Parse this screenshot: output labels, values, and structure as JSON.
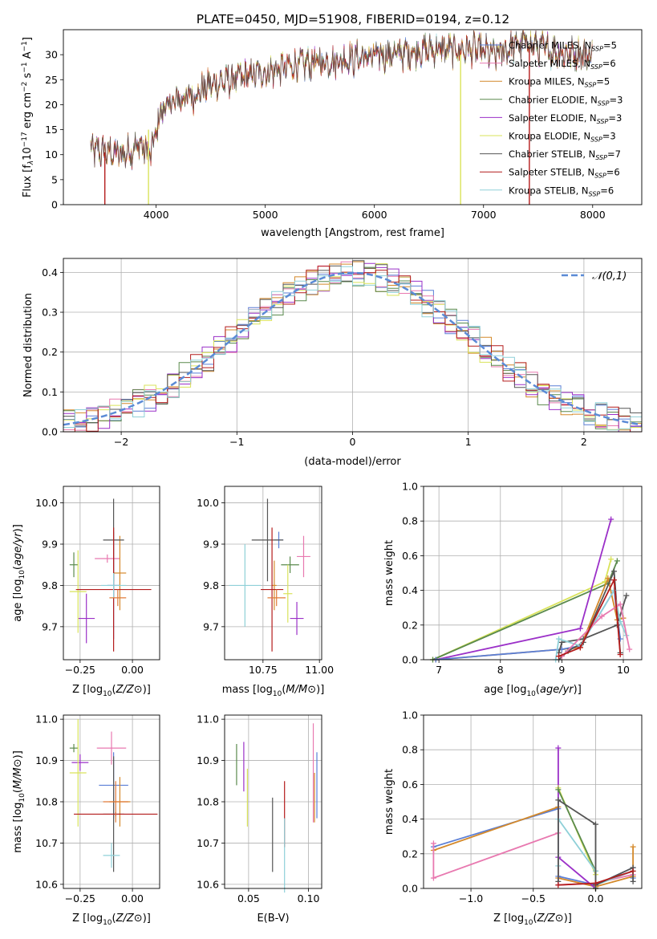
{
  "figure": {
    "title": "PLATE=0450, MJD=51908, FIBERID=0194, z=0.12"
  },
  "colors": {
    "s0": "#5b7fd6",
    "s1": "#e879b0",
    "s2": "#d4892a",
    "s3": "#5a8a4d",
    "s4": "#9b30c8",
    "s5": "#d9e35a",
    "s6": "#555555",
    "s7": "#b41c1c",
    "s8": "#8fd0d8",
    "orange": "#e07b39",
    "gaussian": "#5b8bd6"
  },
  "chart_data": [
    {
      "id": "spectrum",
      "type": "line",
      "title": "PLATE=0450, MJD=51908, FIBERID=0194, z=0.12",
      "xlabel": "wavelength [Angstrom, rest frame]",
      "ylabel_parts": [
        "Flux [f",
        "λ",
        "10",
        "−17",
        " erg cm",
        "−2",
        " s",
        "−1",
        " A",
        "−1",
        "]"
      ],
      "xlim": [
        3150,
        8450
      ],
      "ylim": [
        0,
        35
      ],
      "xticks": [
        "4000",
        "5000",
        "6000",
        "7000",
        "8000"
      ],
      "xtick_values": [
        4000,
        5000,
        6000,
        7000,
        8000
      ],
      "yticks": [
        "0",
        "5",
        "10",
        "15",
        "20",
        "25",
        "30"
      ],
      "ytick_values": [
        0,
        5,
        10,
        15,
        20,
        25,
        30
      ],
      "grid": false,
      "legend_position": "top-right",
      "legend": [
        {
          "base": "Chabrier MILES, N",
          "sub": "SSP",
          "tail": "=5"
        },
        {
          "base": "Salpeter MILES, N",
          "sub": "SSP",
          "tail": "=6"
        },
        {
          "base": "Kroupa MILES, N",
          "sub": "SSP",
          "tail": "=5"
        },
        {
          "base": "Chabrier ELODIE, N",
          "sub": "SSP",
          "tail": "=3"
        },
        {
          "base": "Salpeter ELODIE, N",
          "sub": "SSP",
          "tail": "=3"
        },
        {
          "base": "Kroupa ELODIE, N",
          "sub": "SSP",
          "tail": "=3"
        },
        {
          "base": "Chabrier STELIB, N",
          "sub": "SSP",
          "tail": "=7"
        },
        {
          "base": "Salpeter STELIB, N",
          "sub": "SSP",
          "tail": "=6"
        },
        {
          "base": "Kroupa STELIB, N",
          "sub": "SSP",
          "tail": "=6"
        }
      ],
      "continuum": {
        "wavelength": [
          3400,
          3550,
          3700,
          3850,
          3950,
          4050,
          4200,
          4350,
          4500,
          4700,
          4900,
          5100,
          5300,
          5500,
          5700,
          5900,
          6100,
          6300,
          6500,
          6700,
          6900,
          7100,
          7200,
          7300,
          7400,
          7500,
          7700,
          8000
        ],
        "flux": [
          11,
          10.5,
          10,
          12,
          10,
          19,
          21,
          22,
          24,
          25,
          26,
          27,
          28,
          28.5,
          29,
          29.5,
          30,
          30.5,
          31,
          31,
          31,
          30,
          31,
          32,
          32.5,
          31.5,
          30.5,
          30
        ]
      },
      "drops": [
        {
          "x": 3530,
          "y_from": 10.5,
          "y_to": 0,
          "color": "s7"
        },
        {
          "x": 3930,
          "y_from": 15,
          "y_to": 0,
          "color": "s5"
        },
        {
          "x": 6790,
          "y_from": 30,
          "y_to": 0,
          "color": "s5"
        },
        {
          "x": 7420,
          "y_from": 31,
          "y_to": 0,
          "color": "s7"
        }
      ]
    },
    {
      "id": "residuals",
      "type": "line",
      "xlabel": "(data-model)/error",
      "ylabel": "Normed distribution",
      "xlim": [
        -2.5,
        2.5
      ],
      "ylim": [
        0,
        0.435
      ],
      "xticks": [
        "−2",
        "−1",
        "0",
        "1",
        "2"
      ],
      "xtick_values": [
        -2,
        -1,
        0,
        1,
        2
      ],
      "yticks": [
        "0.0",
        "0.1",
        "0.2",
        "0.3",
        "0.4"
      ],
      "ytick_values": [
        0,
        0.1,
        0.2,
        0.3,
        0.4
      ],
      "grid": true,
      "legend_position": "top-right",
      "gaussian_label": "𝒩(0,1)",
      "bin_width": 0.1
    },
    {
      "id": "age_vs_Z",
      "type": "scatter",
      "xlabel": "Z [log10(Z/Z⊙)]",
      "ylabel": "age  [log10(age/yr)]",
      "xlim": [
        -0.33,
        0.13
      ],
      "ylim": [
        9.62,
        10.04
      ],
      "xticks": [
        "−0.25",
        "0.00"
      ],
      "xtick_values": [
        -0.25,
        0
      ],
      "yticks": [
        "9.7",
        "9.8",
        "9.9",
        "10.0"
      ],
      "ytick_values": [
        9.7,
        9.8,
        9.9,
        10.0
      ],
      "grid": true,
      "points": [
        {
          "x": -0.09,
          "y": 9.8,
          "xerr": 0.03,
          "yerr": 0.13,
          "c": "s0"
        },
        {
          "x": -0.12,
          "y": 9.865,
          "xerr": 0.06,
          "yerr": 0.01,
          "c": "s1"
        },
        {
          "x": -0.06,
          "y": 9.83,
          "xerr": 0.03,
          "yerr": 0.09,
          "c": "s2"
        },
        {
          "x": -0.28,
          "y": 9.85,
          "xerr": 0.02,
          "yerr": 0.03,
          "c": "s3"
        },
        {
          "x": -0.22,
          "y": 9.72,
          "xerr": 0.04,
          "yerr": 0.06,
          "c": "s4"
        },
        {
          "x": -0.26,
          "y": 9.785,
          "xerr": 0.04,
          "yerr": 0.1,
          "c": "s5"
        },
        {
          "x": -0.09,
          "y": 9.91,
          "xerr": 0.05,
          "yerr": 0.1,
          "c": "s6"
        },
        {
          "x": -0.09,
          "y": 9.79,
          "xerr": 0.18,
          "yerr": 0.15,
          "c": "s7"
        },
        {
          "x": -0.09,
          "y": 9.8,
          "xerr": 0.06,
          "yerr": 0.03,
          "c": "s8"
        },
        {
          "x": -0.07,
          "y": 9.77,
          "xerr": 0.04,
          "yerr": 0.02,
          "c": "orange"
        }
      ]
    },
    {
      "id": "age_vs_mass",
      "type": "scatter",
      "xlabel": "mass [log10(M/M⊙)]",
      "ylabel": "",
      "xlim": [
        10.58,
        11.01
      ],
      "ylim": [
        9.62,
        10.04
      ],
      "xticks": [
        "10.75",
        "11.00"
      ],
      "xtick_values": [
        10.75,
        11.0
      ],
      "yticks": [
        "9.7",
        "9.8",
        "9.9",
        "10.0"
      ],
      "ytick_values": [
        9.7,
        9.8,
        9.9,
        10.0
      ],
      "grid": true,
      "points": [
        {
          "x": 10.82,
          "y": 9.91,
          "xerr": 0.02,
          "yerr": 0.02,
          "c": "s0"
        },
        {
          "x": 10.93,
          "y": 9.87,
          "xerr": 0.03,
          "yerr": 0.05,
          "c": "s1"
        },
        {
          "x": 10.8,
          "y": 9.8,
          "xerr": 0.01,
          "yerr": 0.06,
          "c": "s2"
        },
        {
          "x": 10.87,
          "y": 9.85,
          "xerr": 0.04,
          "yerr": 0.02,
          "c": "s3"
        },
        {
          "x": 10.9,
          "y": 9.72,
          "xerr": 0.03,
          "yerr": 0.04,
          "c": "s4"
        },
        {
          "x": 10.86,
          "y": 9.78,
          "xerr": 0.02,
          "yerr": 0.07,
          "c": "s5"
        },
        {
          "x": 10.77,
          "y": 9.91,
          "xerr": 0.07,
          "yerr": 0.1,
          "c": "s6"
        },
        {
          "x": 10.79,
          "y": 9.79,
          "xerr": 0.05,
          "yerr": 0.15,
          "c": "s7"
        },
        {
          "x": 10.67,
          "y": 9.8,
          "xerr": 0.07,
          "yerr": 0.1,
          "c": "s8"
        },
        {
          "x": 10.81,
          "y": 9.77,
          "xerr": 0.04,
          "yerr": 0.02,
          "c": "orange"
        }
      ]
    },
    {
      "id": "weight_vs_age",
      "type": "line",
      "xlabel": "age  [log10(age/yr)]",
      "ylabel": "mass weight",
      "xlim": [
        6.75,
        10.3
      ],
      "ylim": [
        0,
        1
      ],
      "xticks": [
        "7",
        "8",
        "9",
        "10"
      ],
      "xtick_values": [
        7,
        8,
        9,
        10
      ],
      "yticks": [
        "0.0",
        "0.2",
        "0.4",
        "0.6",
        "0.8",
        "1.0"
      ],
      "ytick_values": [
        0,
        0.2,
        0.4,
        0.6,
        0.8,
        1.0
      ],
      "grid": true,
      "series": [
        {
          "c": "s5",
          "x": [
            6.9,
            9.7,
            9.8
          ],
          "y": [
            0,
            0.45,
            0.58
          ]
        },
        {
          "c": "s3",
          "x": [
            6.9,
            9.75,
            9.9
          ],
          "y": [
            0,
            0.44,
            0.57
          ]
        },
        {
          "c": "s4",
          "x": [
            6.95,
            9.3,
            9.8
          ],
          "y": [
            0,
            0.18,
            0.81
          ]
        },
        {
          "c": "s2",
          "x": [
            6.95,
            9.0,
            9.3,
            9.75,
            9.9,
            10.0
          ],
          "y": [
            0,
            0.06,
            0.07,
            0.47,
            0.23,
            0.24
          ]
        },
        {
          "c": "s0",
          "x": [
            6.95,
            9.0,
            9.3,
            9.85,
            9.95
          ],
          "y": [
            0,
            0.06,
            0.08,
            0.4,
            0.12
          ]
        },
        {
          "c": "s6",
          "x": [
            8.95,
            9.0,
            9.35,
            9.9,
            10.05
          ],
          "y": [
            0.04,
            0.1,
            0.12,
            0.2,
            0.37
          ]
        },
        {
          "c": "s6",
          "x": [
            8.95,
            9.1,
            9.35,
            9.85,
            9.95
          ],
          "y": [
            0,
            0.05,
            0.1,
            0.51,
            0.04
          ]
        },
        {
          "c": "s8",
          "x": [
            8.9,
            8.95,
            9.3,
            9.85,
            9.95,
            10.05
          ],
          "y": [
            0,
            0.12,
            0.08,
            0.4,
            0.22,
            0.14
          ]
        },
        {
          "c": "s1",
          "x": [
            9.0,
            9.65,
            9.95,
            10.1
          ],
          "y": [
            0.02,
            0.25,
            0.32,
            0.06
          ]
        },
        {
          "c": "s7",
          "x": [
            8.95,
            9.3,
            9.85,
            9.95
          ],
          "y": [
            0.02,
            0.07,
            0.46,
            0.03
          ]
        }
      ]
    },
    {
      "id": "mass_vs_Z",
      "type": "scatter",
      "xlabel": "Z [log10(Z/Z⊙)]",
      "ylabel": "mass [log10(M/M⊙)]",
      "xlim": [
        -0.33,
        0.13
      ],
      "ylim": [
        10.59,
        11.01
      ],
      "xticks": [
        "−0.25",
        "0.00"
      ],
      "xtick_values": [
        -0.25,
        0
      ],
      "yticks": [
        "10.6",
        "10.7",
        "10.8",
        "10.9",
        "11.0"
      ],
      "ytick_values": [
        10.6,
        10.7,
        10.8,
        10.9,
        11.0
      ],
      "grid": true,
      "points": [
        {
          "x": -0.09,
          "y": 10.84,
          "xerr": 0.07,
          "yerr": 0.08,
          "c": "s0"
        },
        {
          "x": -0.1,
          "y": 10.93,
          "xerr": 0.07,
          "yerr": 0.04,
          "c": "s1"
        },
        {
          "x": -0.06,
          "y": 10.8,
          "xerr": 0.05,
          "yerr": 0.06,
          "c": "s2"
        },
        {
          "x": -0.28,
          "y": 10.93,
          "xerr": 0.02,
          "yerr": 0.01,
          "c": "s3"
        },
        {
          "x": -0.25,
          "y": 10.895,
          "xerr": 0.04,
          "yerr": 0.02,
          "c": "s4"
        },
        {
          "x": -0.26,
          "y": 10.87,
          "xerr": 0.04,
          "yerr": 0.13,
          "c": "s5"
        },
        {
          "x": -0.09,
          "y": 10.77,
          "xerr": 0.05,
          "yerr": 0.14,
          "c": "s6"
        },
        {
          "x": -0.08,
          "y": 10.77,
          "xerr": 0.2,
          "yerr": 0.005,
          "c": "s7"
        },
        {
          "x": -0.1,
          "y": 10.67,
          "xerr": 0.04,
          "yerr": 0.03,
          "c": "s8"
        },
        {
          "x": -0.08,
          "y": 10.8,
          "xerr": 0.06,
          "yerr": 0.05,
          "c": "orange"
        }
      ]
    },
    {
      "id": "mass_vs_EBV",
      "type": "scatter",
      "xlabel": "E(B-V)",
      "ylabel": "",
      "xlim": [
        0.03,
        0.111
      ],
      "ylim": [
        10.59,
        11.01
      ],
      "xticks": [
        "0.05",
        "0.10"
      ],
      "xtick_values": [
        0.05,
        0.1
      ],
      "yticks": [
        "10.6",
        "10.7",
        "10.8",
        "10.9",
        "11.0"
      ],
      "ytick_values": [
        10.6,
        10.7,
        10.8,
        10.9,
        11.0
      ],
      "grid": true,
      "points": [
        {
          "x": 0.107,
          "y": 10.84,
          "xerr": 0,
          "yerr": 0.08,
          "c": "s0"
        },
        {
          "x": 0.104,
          "y": 10.87,
          "xerr": 0,
          "yerr": 0.12,
          "c": "s1"
        },
        {
          "x": 0.105,
          "y": 10.81,
          "xerr": 0,
          "yerr": 0.06,
          "c": "s2"
        },
        {
          "x": 0.04,
          "y": 10.89,
          "xerr": 0,
          "yerr": 0.05,
          "c": "s3"
        },
        {
          "x": 0.046,
          "y": 10.885,
          "xerr": 0,
          "yerr": 0.06,
          "c": "s4"
        },
        {
          "x": 0.049,
          "y": 10.81,
          "xerr": 0,
          "yerr": 0.07,
          "c": "s5"
        },
        {
          "x": 0.07,
          "y": 10.72,
          "xerr": 0,
          "yerr": 0.09,
          "c": "s6"
        },
        {
          "x": 0.08,
          "y": 10.77,
          "xerr": 0,
          "yerr": 0.08,
          "c": "s7"
        },
        {
          "x": 0.08,
          "y": 10.67,
          "xerr": 0,
          "yerr": 0.09,
          "c": "s8"
        }
      ]
    },
    {
      "id": "weight_vs_Z",
      "type": "line",
      "xlabel": "Z [log10(Z/Z⊙)]",
      "ylabel": "mass weight",
      "xlim": [
        -1.38,
        0.37
      ],
      "ylim": [
        0,
        1
      ],
      "xticks": [
        "−1.0",
        "−0.5",
        "0.0"
      ],
      "xtick_values": [
        -1,
        -0.5,
        0
      ],
      "yticks": [
        "0.0",
        "0.2",
        "0.4",
        "0.6",
        "0.8",
        "1.0"
      ],
      "ytick_values": [
        0,
        0.2,
        0.4,
        0.6,
        0.8,
        1.0
      ],
      "grid": true,
      "series": [
        {
          "c": "s0",
          "x": [
            -1.3,
            -0.3,
            -0.3,
            0.0,
            0.3,
            0.3
          ],
          "y": [
            0.24,
            0.46,
            0.07,
            0.02,
            0.12,
            0.06
          ]
        },
        {
          "c": "s2",
          "x": [
            -1.3,
            -0.3,
            -0.3,
            0.0,
            0.3,
            0.3
          ],
          "y": [
            0.22,
            0.47,
            0.06,
            0.01,
            0.07,
            0.24
          ]
        },
        {
          "c": "s1",
          "x": [
            -1.3,
            -1.3,
            -0.3,
            -0.3,
            0.0,
            0.3
          ],
          "y": [
            0.26,
            0.06,
            0.32,
            0.02,
            0.03,
            0.08
          ]
        },
        {
          "c": "s4",
          "x": [
            -0.3,
            -0.3,
            0.0,
            0.0
          ],
          "y": [
            0.81,
            0.18,
            0.0,
            0.0
          ]
        },
        {
          "c": "s5",
          "x": [
            -0.3,
            0.0,
            0.0
          ],
          "y": [
            0.58,
            0.08,
            0.0
          ]
        },
        {
          "c": "s3",
          "x": [
            -0.3,
            0.0,
            0.0
          ],
          "y": [
            0.57,
            0.1,
            0.0
          ]
        },
        {
          "c": "s8",
          "x": [
            -0.3,
            -0.3,
            0.0,
            0.0,
            0.3
          ],
          "y": [
            0.13,
            0.4,
            0.1,
            0.02,
            0.1
          ]
        },
        {
          "c": "s6",
          "x": [
            -0.3,
            -0.3,
            0.0,
            0.0,
            0.3,
            0.3
          ],
          "y": [
            0.04,
            0.51,
            0.37,
            0.02,
            0.12,
            0.04
          ]
        },
        {
          "c": "s7",
          "x": [
            -0.3,
            0.0,
            0.3
          ],
          "y": [
            0.02,
            0.03,
            0.1
          ]
        }
      ]
    }
  ]
}
